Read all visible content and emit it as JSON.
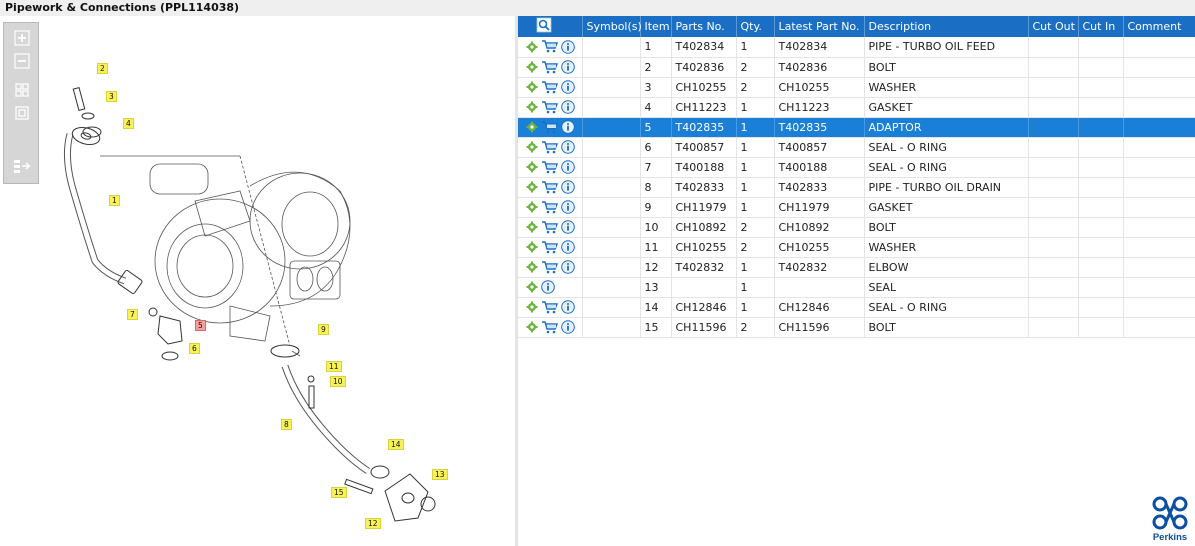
{
  "title": "Pipework & Connections (PPL114038)",
  "colors": {
    "header": "#1a6fc4",
    "selected_row": "#1a7fd6",
    "callout": "#f7f25a",
    "brand": "#0d4fa0"
  },
  "toolbar": {
    "icons": [
      "zoom-in-icon",
      "zoom-out-icon",
      "fit-all-icon",
      "actual-size-icon",
      "expand-panel-icon"
    ]
  },
  "callouts": [
    "2",
    "3",
    "4",
    "1",
    "7",
    "5",
    "6",
    "9",
    "11",
    "10",
    "8",
    "14",
    "13",
    "15",
    "12"
  ],
  "table": {
    "headers": [
      "",
      "Symbol(s)",
      "Item",
      "Parts No.",
      "Qty.",
      "Latest Part No.",
      "Description",
      "Cut Out",
      "Cut In",
      "Comment"
    ],
    "rows": [
      {
        "item": "1",
        "part": "T402834",
        "qty": "1",
        "latest": "T402834",
        "desc": "PIPE - TURBO OIL FEED"
      },
      {
        "item": "2",
        "part": "T402836",
        "qty": "2",
        "latest": "T402836",
        "desc": "BOLT"
      },
      {
        "item": "3",
        "part": "CH10255",
        "qty": "2",
        "latest": "CH10255",
        "desc": "WASHER"
      },
      {
        "item": "4",
        "part": "CH11223",
        "qty": "1",
        "latest": "CH11223",
        "desc": "GASKET"
      },
      {
        "item": "5",
        "part": "T402835",
        "qty": "1",
        "latest": "T402835",
        "desc": "ADAPTOR"
      },
      {
        "item": "6",
        "part": "T400857",
        "qty": "1",
        "latest": "T400857",
        "desc": "SEAL - O RING"
      },
      {
        "item": "7",
        "part": "T400188",
        "qty": "1",
        "latest": "T400188",
        "desc": "SEAL - O RING"
      },
      {
        "item": "8",
        "part": "T402833",
        "qty": "1",
        "latest": "T402833",
        "desc": "PIPE - TURBO OIL DRAIN"
      },
      {
        "item": "9",
        "part": "CH11979",
        "qty": "1",
        "latest": "CH11979",
        "desc": "GASKET"
      },
      {
        "item": "10",
        "part": "CH10892",
        "qty": "2",
        "latest": "CH10892",
        "desc": "BOLT"
      },
      {
        "item": "11",
        "part": "CH10255",
        "qty": "2",
        "latest": "CH10255",
        "desc": "WASHER"
      },
      {
        "item": "12",
        "part": "T402832",
        "qty": "1",
        "latest": "T402832",
        "desc": "ELBOW"
      },
      {
        "item": "13",
        "part": "",
        "qty": "1",
        "latest": "",
        "desc": "SEAL"
      },
      {
        "item": "14",
        "part": "CH12846",
        "qty": "1",
        "latest": "CH12846",
        "desc": "SEAL - O RING"
      },
      {
        "item": "15",
        "part": "CH11596",
        "qty": "2",
        "latest": "CH11596",
        "desc": "BOLT"
      }
    ]
  },
  "logo": {
    "text": "Perkins"
  }
}
